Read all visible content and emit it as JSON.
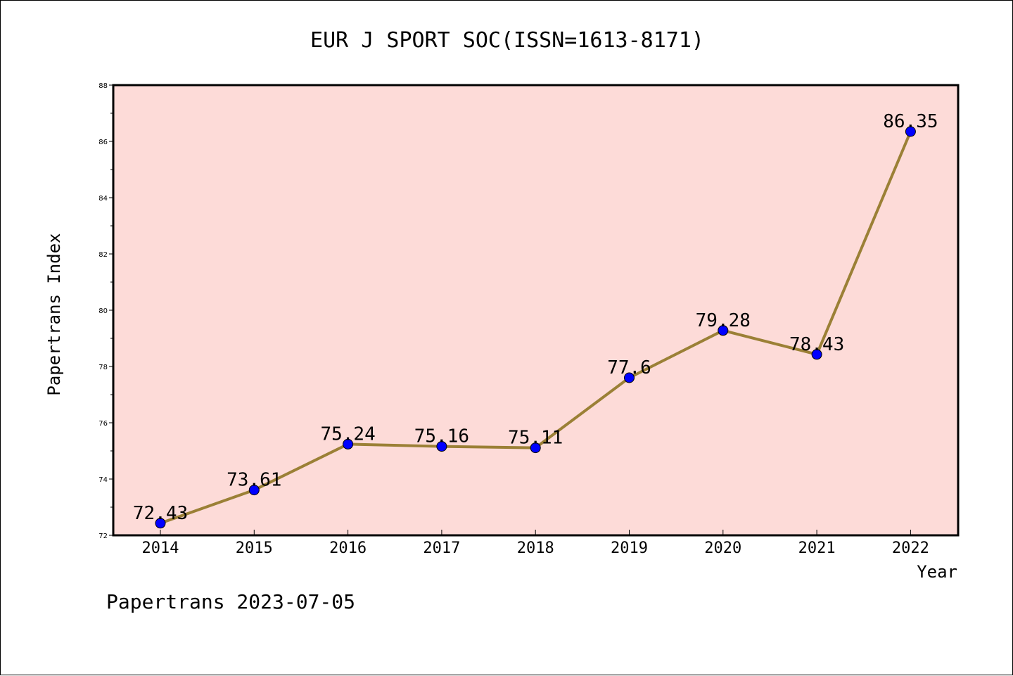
{
  "footer": "Papertrans 2023-07-05",
  "colors": {
    "plot_background": "#fddbd8",
    "line": "#9b8036",
    "marker": "#0000ff"
  },
  "chart_data": {
    "type": "line",
    "title": "EUR J SPORT SOC(ISSN=1613-8171)",
    "xlabel": "Year",
    "ylabel": "Papertrans Index",
    "categories": [
      "2014",
      "2015",
      "2016",
      "2017",
      "2018",
      "2019",
      "2020",
      "2021",
      "2022"
    ],
    "values": [
      72.43,
      73.61,
      75.24,
      75.16,
      75.11,
      77.6,
      79.28,
      78.43,
      86.35
    ],
    "data_labels": [
      "72.43",
      "73.61",
      "75.24",
      "75.16",
      "75.11",
      "77.6",
      "79.28",
      "78.43",
      "86.35"
    ],
    "ylim": [
      72,
      88
    ],
    "yticks": [
      72,
      74,
      76,
      78,
      80,
      82,
      84,
      86,
      88
    ],
    "grid": false,
    "legend": "none"
  }
}
